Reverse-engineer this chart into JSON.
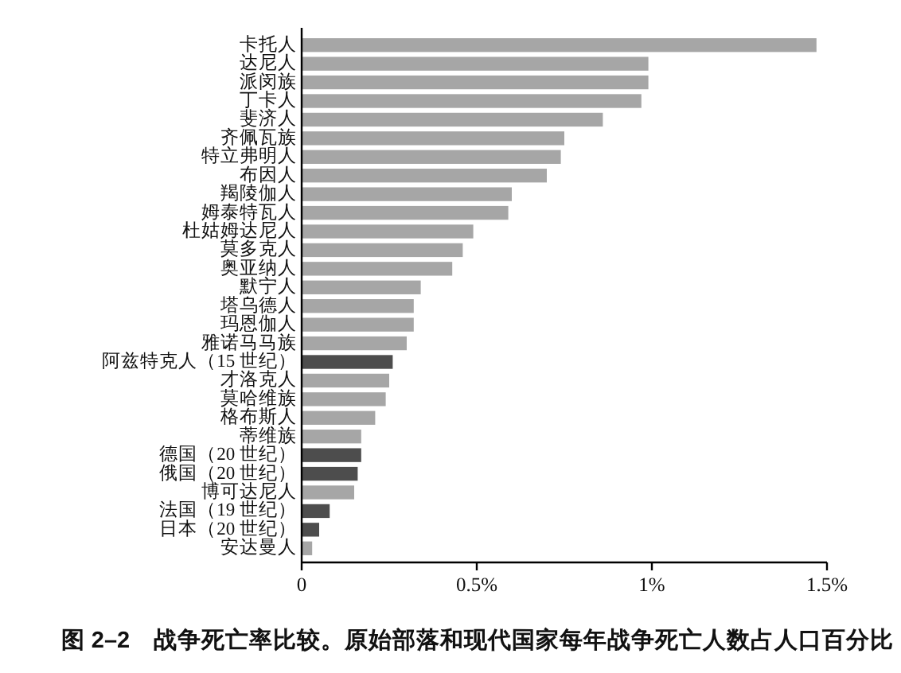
{
  "chart_data": {
    "type": "bar",
    "orientation": "horizontal",
    "categories": [
      "卡托人",
      "达尼人",
      "派闵族",
      "丁卡人",
      "斐济人",
      "齐佩瓦族",
      "特立弗明人",
      "布因人",
      "羯陵伽人",
      "姆泰特瓦人",
      "杜姑姆达尼人",
      "莫多克人",
      "奥亚纳人",
      "默宁人",
      "塔乌德人",
      "玛恩伽人",
      "雅诺马马族",
      "阿兹特克人（15 世纪）",
      "才洛克人",
      "莫哈维族",
      "格布斯人",
      "蒂维族",
      "德国（20 世纪）",
      "俄国（20 世纪）",
      "博可达尼人",
      "法国（19 世纪）",
      "日本（20 世纪）",
      "安达曼人"
    ],
    "values": [
      1.47,
      0.99,
      0.99,
      0.97,
      0.86,
      0.75,
      0.74,
      0.7,
      0.6,
      0.59,
      0.49,
      0.46,
      0.43,
      0.34,
      0.32,
      0.32,
      0.3,
      0.26,
      0.25,
      0.24,
      0.21,
      0.17,
      0.17,
      0.16,
      0.15,
      0.08,
      0.05,
      0.03
    ],
    "colors": [
      "#a6a6a6",
      "#a6a6a6",
      "#a6a6a6",
      "#a6a6a6",
      "#a6a6a6",
      "#a6a6a6",
      "#a6a6a6",
      "#a6a6a6",
      "#a6a6a6",
      "#a6a6a6",
      "#a6a6a6",
      "#a6a6a6",
      "#a6a6a6",
      "#a6a6a6",
      "#a6a6a6",
      "#a6a6a6",
      "#a6a6a6",
      "#4d4d4d",
      "#a6a6a6",
      "#a6a6a6",
      "#a6a6a6",
      "#a6a6a6",
      "#4d4d4d",
      "#4d4d4d",
      "#a6a6a6",
      "#4d4d4d",
      "#4d4d4d",
      "#a6a6a6"
    ],
    "xlim": [
      0,
      1.5
    ],
    "xticks": [
      0,
      {
        "value": 0.5,
        "label": "0.5%"
      },
      {
        "value": 1,
        "label": "1%"
      },
      {
        "value": 1.5,
        "label": "1.5%"
      }
    ],
    "annotations": [
      "图 2–2　战争死亡率比较。原始部落和现代国家每年战争死亡人数占人口百分比"
    ]
  }
}
